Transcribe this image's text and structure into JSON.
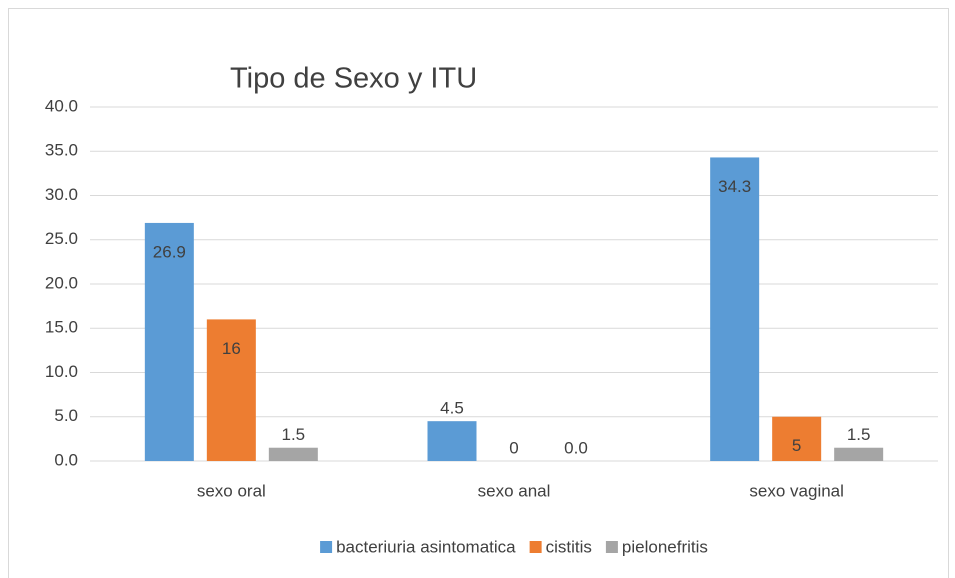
{
  "chart_data": {
    "type": "bar",
    "title": "Tipo de Sexo y ITU",
    "categories": [
      "sexo oral",
      "sexo anal",
      "sexo vaginal"
    ],
    "series": [
      {
        "name": "bacteriuria asintomatica",
        "color": "#5b9bd5",
        "values": [
          26.9,
          4.5,
          34.3
        ]
      },
      {
        "name": "cistitis",
        "color": "#ed7d31",
        "values": [
          16,
          0,
          5
        ]
      },
      {
        "name": "pielonefritis",
        "color": "#a5a5a5",
        "values": [
          1.5,
          0,
          1.5
        ],
        "value_labels": [
          "1.5",
          "0.0",
          "1.5"
        ]
      }
    ],
    "ylim": [
      0,
      40
    ],
    "yticks": [
      {
        "value": 0,
        "label": "0.0"
      },
      {
        "value": 5,
        "label": "5.0"
      },
      {
        "value": 10,
        "label": "10.0"
      },
      {
        "value": 15,
        "label": "15.0"
      },
      {
        "value": 20,
        "label": "20.0"
      },
      {
        "value": 25,
        "label": "25.0"
      },
      {
        "value": 30,
        "label": "30.0"
      },
      {
        "value": 35,
        "label": "35.0"
      },
      {
        "value": 40,
        "label": "40.0"
      }
    ],
    "grid": true,
    "legend": "bottom"
  }
}
